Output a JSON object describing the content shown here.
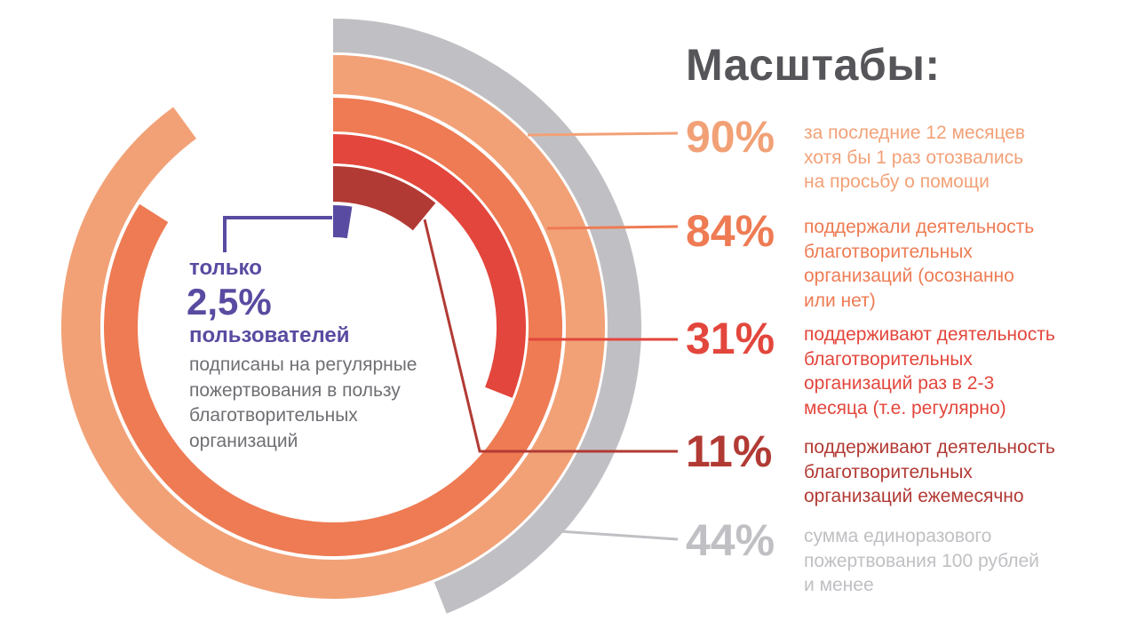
{
  "title": "Масштабы:",
  "center_callout": {
    "prefix": "только",
    "value": "2,5%",
    "suffix": "пользователей",
    "description": "подписаны на регулярные\nпожертвования в пользу\nблаготворительных\nорганизаций",
    "accent_color": "#584BA1",
    "text_color": "#6F6F74"
  },
  "title_color": "#56565A",
  "chart_data": {
    "type": "radial-bar",
    "unit": "%",
    "start_angle_deg": 0,
    "direction": "clockwise",
    "value_range": [
      0,
      100
    ],
    "series": [
      {
        "id": "responded",
        "value": 90,
        "label": "90%",
        "color": "#F2A177",
        "description": "за последние 12 месяцев\nхотя бы 1 раз отозвались\nна просьбу о помощи"
      },
      {
        "id": "supported",
        "value": 84,
        "label": "84%",
        "color": "#EE7B53",
        "description": "поддержали деятельность\nблаготворительных\nорганизаций (осознанно\nили нет)"
      },
      {
        "id": "regular-2-3-months",
        "value": 31,
        "label": "31%",
        "color": "#E3463C",
        "description": "поддерживают деятельность\nблаготворительных\nорганизаций раз в 2-3\nмесяца (т.е. регулярно)"
      },
      {
        "id": "monthly",
        "value": 11,
        "label": "11%",
        "color": "#B23A34",
        "description": "поддерживают деятельность\nблаготворительных\nорганизаций ежемесячно"
      },
      {
        "id": "small-donation",
        "value": 44,
        "label": "44%",
        "color": "#C0C0C4",
        "description": "сумма единоразового\nпожертвования 100 рублей\nи менее"
      },
      {
        "id": "subscribed",
        "value": 2.5,
        "label": "2,5%",
        "color": "#584BA1"
      }
    ]
  }
}
